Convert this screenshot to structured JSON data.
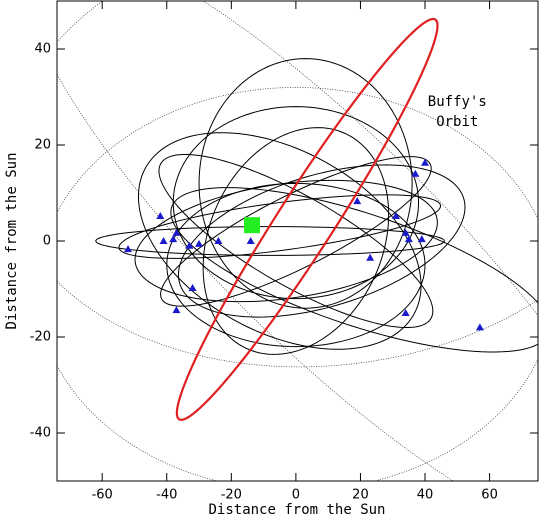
{
  "chart_data": {
    "type": "orbit",
    "xlabel": "Distance from the Sun",
    "ylabel": "Distance from the Sun",
    "xlim": [
      -74,
      75
    ],
    "ylim": [
      -50,
      50
    ],
    "xticks": [
      -60,
      -40,
      -20,
      0,
      20,
      40,
      60
    ],
    "yticks": [
      -40,
      -20,
      0,
      20,
      40
    ],
    "annotation": [
      "Buffy's",
      "Orbit"
    ],
    "annotation_at": [
      50,
      29
    ],
    "highlight": {
      "color": "#e02020",
      "cx": 3.5,
      "cy": 4.5,
      "a": 57.6,
      "b": 7.5,
      "angle": 46
    },
    "orbit_color": "#000000",
    "orbits": [
      {
        "cx": 3,
        "cy": 12,
        "a": 33,
        "b": 26,
        "angle": 0
      },
      {
        "cx": 0,
        "cy": 8,
        "a": 38,
        "b": 20,
        "angle": 0
      },
      {
        "cx": -8,
        "cy": 0,
        "a": 54,
        "b": 3,
        "angle": 0
      },
      {
        "cx": 8,
        "cy": 0,
        "a": 45,
        "b": 14,
        "angle": 10
      },
      {
        "cx": -5,
        "cy": 0,
        "a": 45,
        "b": 20,
        "angle": -15
      },
      {
        "cx": 20,
        "cy": -6,
        "a": 60,
        "b": 12,
        "angle": -12
      },
      {
        "cx": 0,
        "cy": -5,
        "a": 40,
        "b": 17,
        "angle": 0
      },
      {
        "cx": -5,
        "cy": 3,
        "a": 50,
        "b": 5,
        "angle": 5
      },
      {
        "cx": 0,
        "cy": 0,
        "a": 30,
        "b": 22,
        "angle": 25
      },
      {
        "cx": 0,
        "cy": 0,
        "a": 45,
        "b": 10,
        "angle": -20
      },
      {
        "cx": 0,
        "cy": 2,
        "a": 44,
        "b": 8,
        "angle": 18
      },
      {
        "cx": -3,
        "cy": 0,
        "a": 47,
        "b": 12,
        "angle": 5
      }
    ],
    "dotted_orbits": [
      {
        "cx": 0,
        "cy": -10,
        "a": 80,
        "b": 42,
        "angle": 0
      },
      {
        "cx": 10,
        "cy": 0,
        "a": 110,
        "b": 26,
        "angle": -32
      },
      {
        "cx": 10,
        "cy": 20,
        "a": 100,
        "b": 46,
        "angle": 3
      }
    ],
    "points": {
      "color": "#1a1acd",
      "x": [
        -42,
        -37,
        -41,
        -38,
        -52,
        -33,
        -30,
        -24,
        -14,
        -32,
        -37,
        19,
        31,
        34,
        35,
        39,
        23,
        34,
        57,
        37,
        40
      ],
      "y": [
        5.2,
        1.7,
        0,
        0.4,
        -1.7,
        -1,
        -0.6,
        0,
        0,
        -9.8,
        -14.4,
        8.3,
        5.2,
        1.7,
        0.4,
        0.4,
        -3.5,
        -15,
        -18,
        14,
        16.3
      ]
    },
    "sun": {
      "color": "#22ee22",
      "x": -13.6,
      "y": 3.3
    }
  }
}
